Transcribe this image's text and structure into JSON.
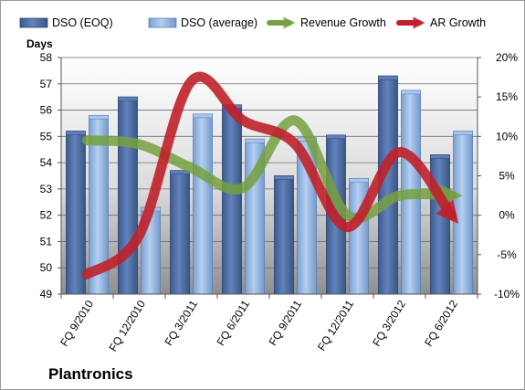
{
  "chart_data": {
    "type": "bar",
    "company": "Plantronics",
    "left_axis_title": "Days",
    "categories": [
      "FQ 9/2010",
      "FQ 12/2010",
      "FQ 3/2011",
      "FQ 6/2011",
      "FQ 9/2011",
      "FQ 12/2011",
      "FQ 3/2012",
      "FQ 6/2012"
    ],
    "left_ylim": [
      49,
      58
    ],
    "left_ticks": [
      "49",
      "50",
      "51",
      "52",
      "53",
      "54",
      "55",
      "56",
      "57",
      "58"
    ],
    "right_ylim": [
      -10,
      20
    ],
    "right_ticks": [
      "-10%",
      "-5%",
      "0%",
      "5%",
      "10%",
      "15%",
      "20%"
    ],
    "series": [
      {
        "name": "DSO (EOQ)",
        "type": "bar",
        "axis": "left",
        "color": "#4f6fa8",
        "values": [
          55.2,
          56.5,
          53.7,
          56.2,
          53.5,
          55.05,
          57.3,
          54.3
        ]
      },
      {
        "name": "DSO (average)",
        "type": "bar",
        "axis": "left",
        "color": "#8fb4e3",
        "values": [
          55.8,
          52.3,
          55.85,
          54.9,
          54.95,
          53.4,
          56.75,
          55.2
        ]
      },
      {
        "name": "Revenue Growth",
        "type": "line",
        "axis": "right",
        "color": "#76a040",
        "values": [
          9.5,
          9.0,
          6.0,
          3.5,
          12.0,
          0.0,
          2.5,
          2.5
        ]
      },
      {
        "name": "AR Growth",
        "type": "line",
        "axis": "right",
        "color": "#c0202a",
        "values": [
          -7.5,
          -2.5,
          17.0,
          12.0,
          9.0,
          -1.5,
          8.0,
          0.0
        ]
      }
    ],
    "grid": true,
    "legend_position": "top"
  }
}
